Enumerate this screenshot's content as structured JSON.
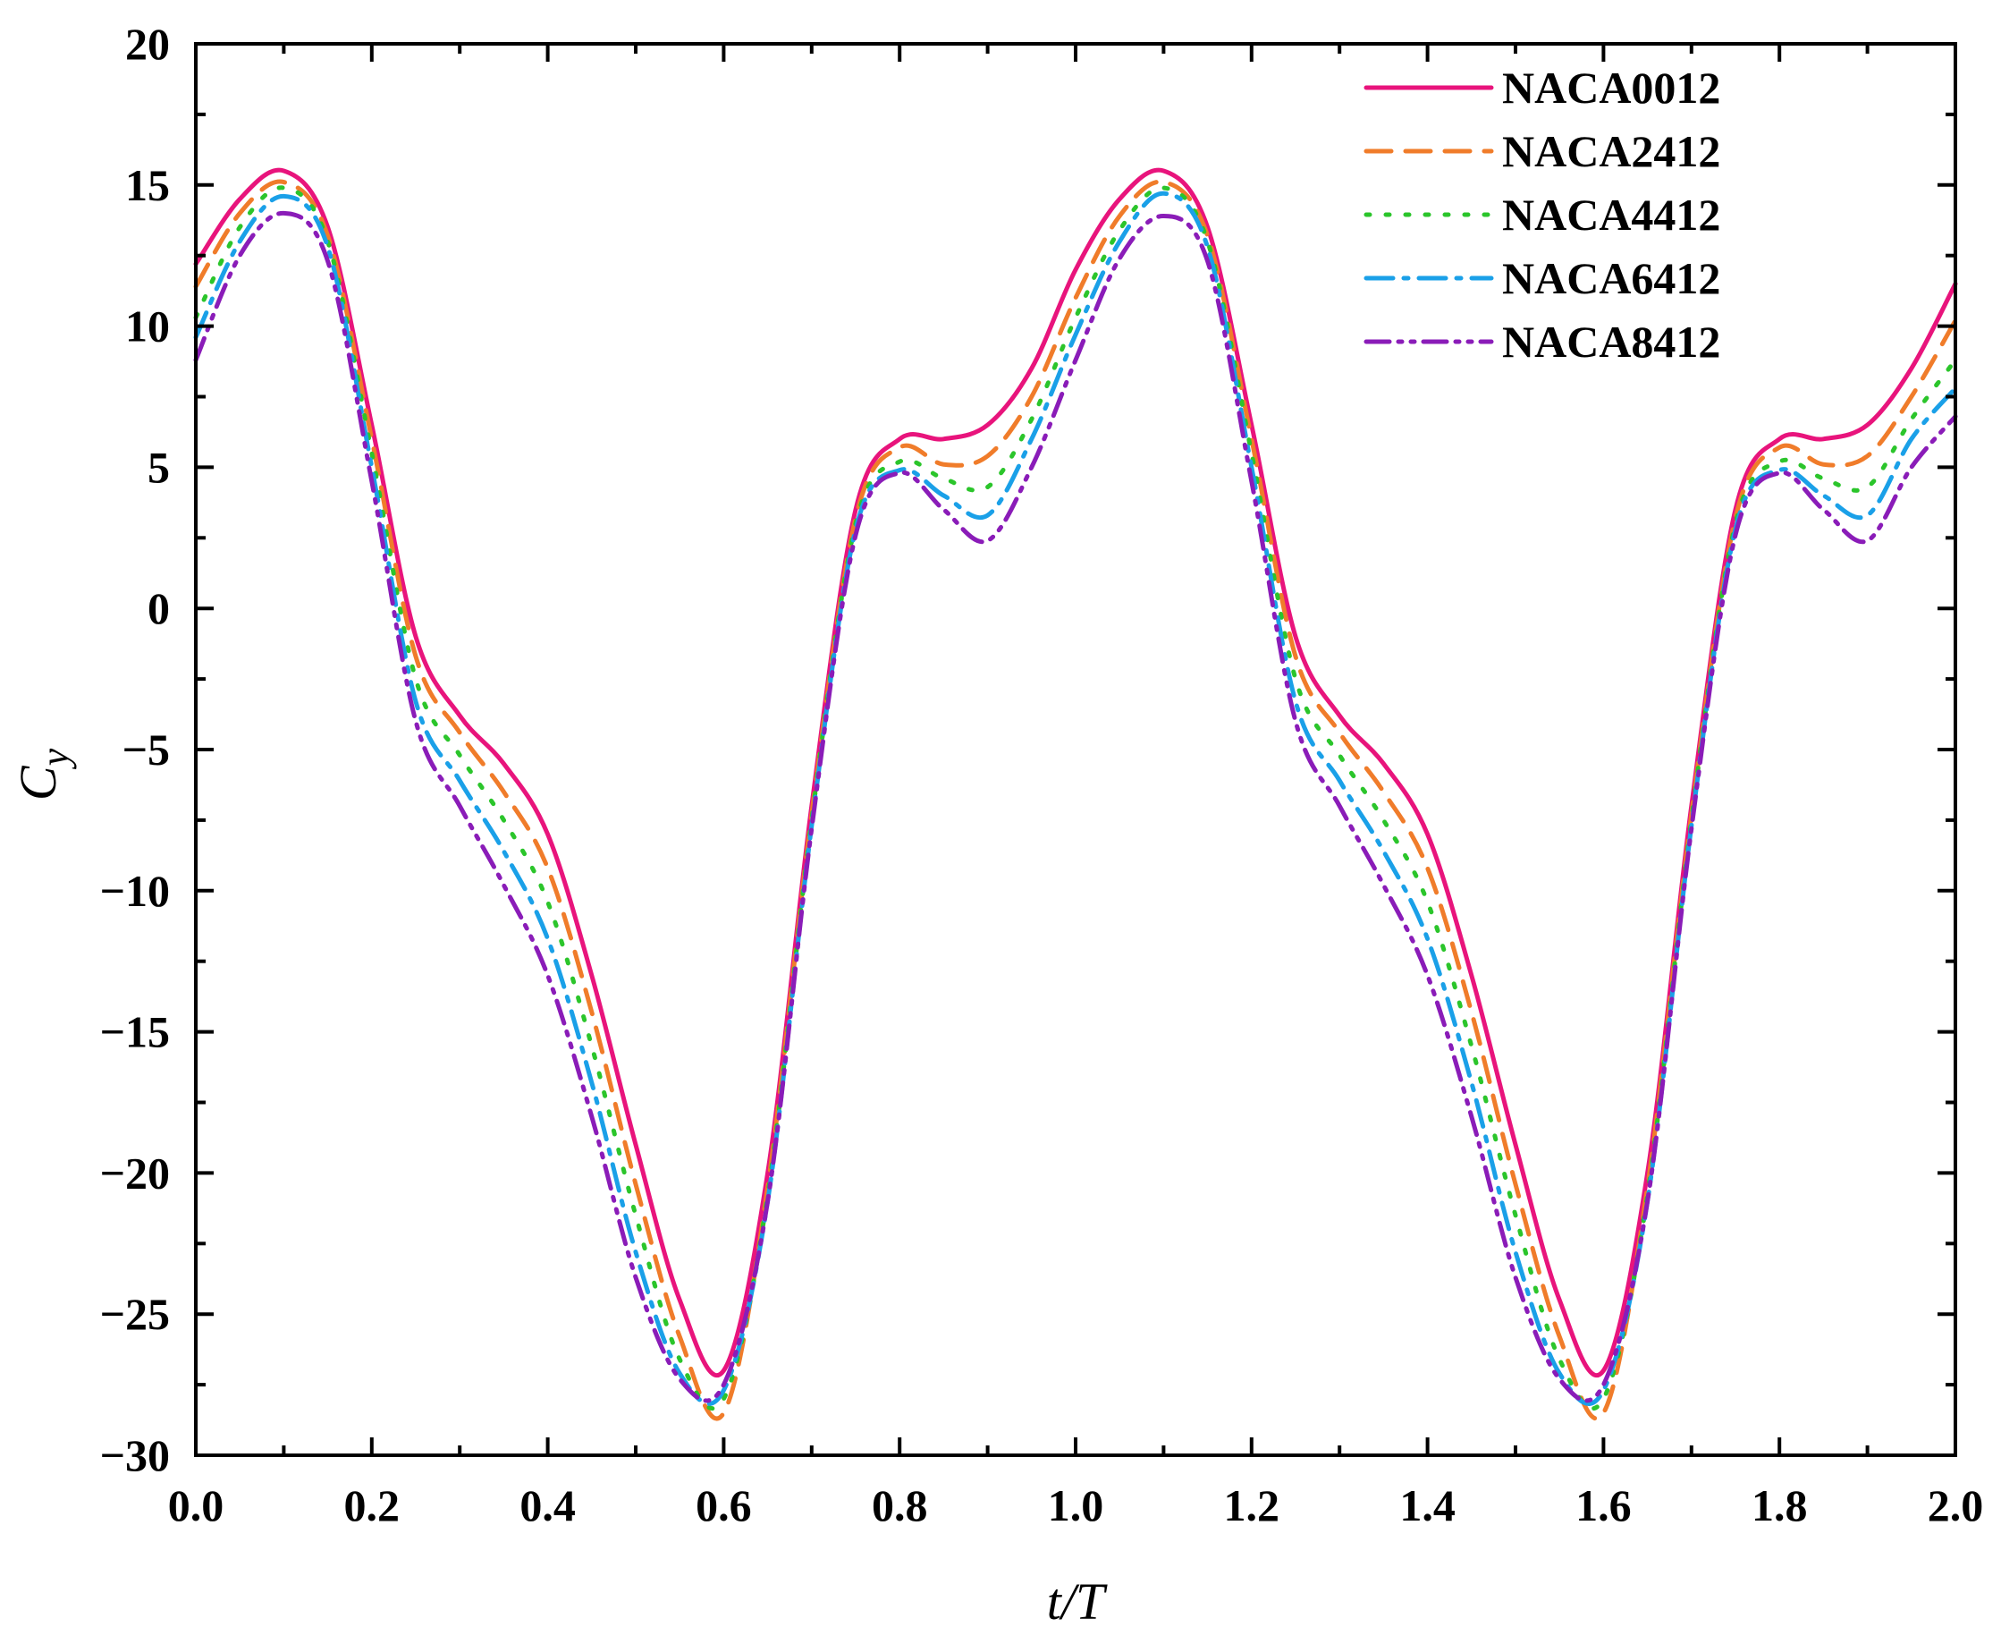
{
  "chart_data": {
    "type": "line",
    "xlabel": "t/T",
    "ylabel": {
      "main": "C",
      "sub": "y"
    },
    "xlim": [
      0,
      2
    ],
    "ylim": [
      -30,
      20
    ],
    "xticks": [
      0.0,
      0.2,
      0.4,
      0.6,
      0.8,
      1.0,
      1.2,
      1.4,
      1.6,
      1.8,
      2.0
    ],
    "xtick_labels": [
      "0.0",
      "0.2",
      "0.4",
      "0.6",
      "0.8",
      "1.0",
      "1.2",
      "1.4",
      "1.6",
      "1.8",
      "2.0"
    ],
    "yticks": [
      -30,
      -25,
      -20,
      -15,
      -10,
      -5,
      0,
      5,
      10,
      15,
      20
    ],
    "ytick_labels": [
      "−30",
      "−25",
      "−20",
      "−15",
      "−10",
      "−5",
      "0",
      "5",
      "10",
      "15",
      "20"
    ],
    "grid": false,
    "legend_position": "top-right",
    "x": [
      0.0,
      0.05,
      0.1,
      0.15,
      0.2,
      0.25,
      0.3,
      0.35,
      0.4,
      0.45,
      0.5,
      0.55,
      0.6,
      0.65,
      0.7,
      0.75,
      0.8,
      0.85,
      0.9,
      0.95,
      1.0,
      1.05,
      1.1,
      1.15,
      1.2,
      1.25,
      1.3,
      1.35,
      1.4,
      1.45,
      1.5,
      1.55,
      1.6,
      1.65,
      1.7,
      1.75,
      1.8,
      1.85,
      1.9,
      1.95,
      2.0
    ],
    "series": [
      {
        "name": "NACA0012",
        "color": "#e8147c",
        "dash": "solid",
        "values": [
          12.2,
          14.5,
          15.5,
          13.5,
          6.5,
          -1.0,
          -3.8,
          -5.5,
          -8.0,
          -13.0,
          -19.0,
          -24.5,
          -27.0,
          -20.0,
          -7.0,
          3.5,
          6.0,
          6.0,
          6.5,
          8.5,
          12.0,
          14.5,
          15.5,
          13.5,
          6.5,
          -1.0,
          -3.8,
          -5.5,
          -8.0,
          -13.0,
          -19.0,
          -24.5,
          -27.0,
          -20.0,
          -7.0,
          3.5,
          6.0,
          6.0,
          6.5,
          8.5,
          11.5
        ]
      },
      {
        "name": "NACA2412",
        "color": "#f07c2a",
        "dash": "28,16",
        "values": [
          11.4,
          14.0,
          15.1,
          13.2,
          6.0,
          -1.7,
          -4.4,
          -6.5,
          -9.2,
          -14.3,
          -20.4,
          -25.8,
          -28.5,
          -20.5,
          -7.3,
          3.2,
          5.7,
          5.1,
          5.4,
          7.5,
          11.0,
          13.9,
          15.1,
          13.2,
          6.0,
          -1.7,
          -4.4,
          -6.5,
          -9.2,
          -14.3,
          -20.4,
          -25.8,
          -28.5,
          -20.5,
          -7.3,
          3.2,
          5.7,
          5.1,
          5.4,
          7.5,
          10.2
        ]
      },
      {
        "name": "NACA4412",
        "color": "#2bc52b",
        "dash": "4,18",
        "values": [
          10.3,
          13.5,
          14.9,
          13.0,
          5.5,
          -2.5,
          -5.2,
          -7.5,
          -10.4,
          -15.5,
          -21.5,
          -26.6,
          -28.0,
          -20.8,
          -7.5,
          3.0,
          5.2,
          4.6,
          4.3,
          6.7,
          10.3,
          13.4,
          14.9,
          13.0,
          5.5,
          -2.5,
          -5.2,
          -7.5,
          -10.4,
          -15.5,
          -21.5,
          -26.6,
          -28.0,
          -20.8,
          -7.5,
          3.0,
          5.2,
          4.6,
          4.3,
          6.7,
          8.8
        ]
      },
      {
        "name": "NACA6412",
        "color": "#1aa0e8",
        "dash": "30,12,5,12",
        "values": [
          9.6,
          13.0,
          14.6,
          12.8,
          5.0,
          -3.3,
          -6.1,
          -8.6,
          -11.7,
          -16.8,
          -22.8,
          -27.1,
          -27.7,
          -21.0,
          -7.7,
          2.8,
          4.9,
          4.0,
          3.3,
          6.0,
          9.7,
          13.0,
          14.7,
          12.8,
          5.0,
          -3.3,
          -6.1,
          -8.6,
          -11.7,
          -16.8,
          -22.8,
          -27.1,
          -27.7,
          -21.0,
          -7.7,
          2.8,
          4.9,
          4.0,
          3.3,
          6.0,
          7.8
        ]
      },
      {
        "name": "NACA8412",
        "color": "#8a1cb8",
        "dash": "26,10,4,10,4,10",
        "values": [
          8.8,
          12.5,
          14.0,
          12.3,
          4.5,
          -4.0,
          -7.0,
          -9.8,
          -13.0,
          -18.0,
          -23.7,
          -27.3,
          -27.5,
          -21.0,
          -7.8,
          2.6,
          4.8,
          3.5,
          2.4,
          5.0,
          8.8,
          12.4,
          13.9,
          12.3,
          4.5,
          -4.0,
          -7.0,
          -9.8,
          -13.0,
          -18.0,
          -23.7,
          -27.3,
          -27.5,
          -21.0,
          -7.8,
          2.6,
          4.8,
          3.5,
          2.4,
          5.0,
          6.8
        ]
      }
    ]
  }
}
